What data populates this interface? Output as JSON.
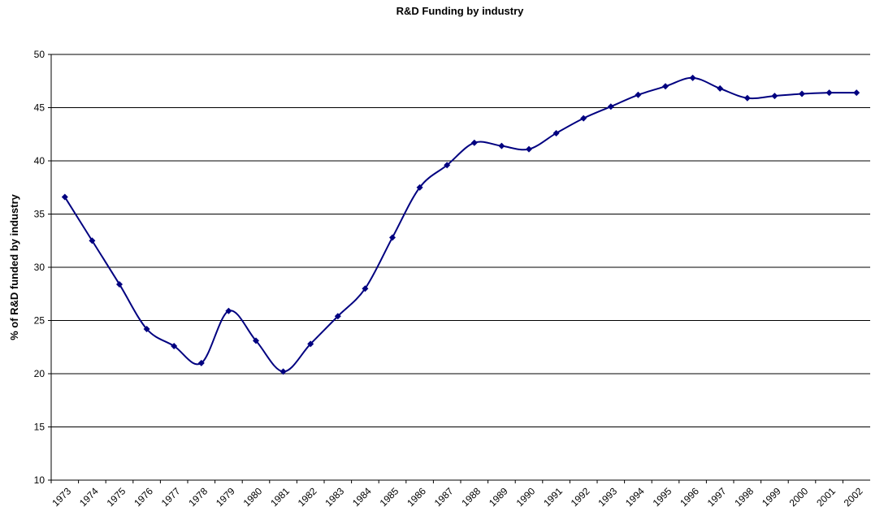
{
  "chart_data": {
    "type": "line",
    "title": "R&D Funding by industry",
    "y_label": "% of R&D funded by industry",
    "categories": [
      "1973",
      "1974",
      "1975",
      "1976",
      "1977",
      "1978",
      "1979",
      "1980",
      "1981",
      "1982",
      "1983",
      "1984",
      "1985",
      "1986",
      "1987",
      "1988",
      "1989",
      "1990",
      "1991",
      "1992",
      "1993",
      "1994",
      "1995",
      "1996",
      "1997",
      "1998",
      "1999",
      "2000",
      "2001",
      "2002"
    ],
    "series": [
      {
        "name": "% of R&D funded by industry",
        "color": "#000080",
        "values": [
          36.6,
          32.5,
          28.4,
          24.2,
          22.6,
          21.0,
          25.9,
          23.1,
          20.2,
          22.8,
          25.4,
          28.0,
          32.8,
          37.5,
          39.6,
          41.7,
          41.4,
          41.1,
          42.6,
          44.0,
          45.1,
          46.2,
          47.0,
          47.8,
          46.8,
          45.9,
          46.1,
          46.3,
          46.4,
          46.4
        ]
      }
    ],
    "ylim": [
      10,
      50
    ],
    "yticks": [
      10,
      15,
      20,
      25,
      30,
      35,
      40,
      45,
      50
    ],
    "grid": true,
    "smooth": true
  }
}
